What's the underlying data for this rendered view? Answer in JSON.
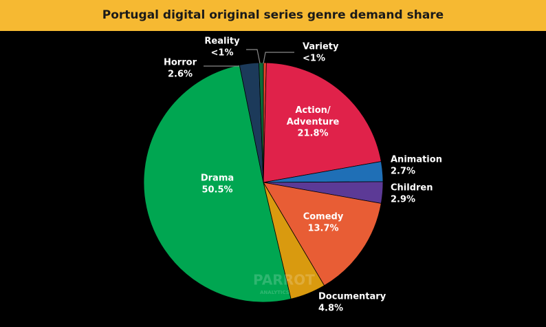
{
  "chart_data": {
    "type": "pie",
    "title": "Portugal digital original series genre demand share",
    "categories": [
      "Variety",
      "Action/Adventure",
      "Animation",
      "Children",
      "Comedy",
      "Documentary",
      "Drama",
      "Horror",
      "Reality"
    ],
    "values": [
      0.4,
      21.8,
      2.7,
      2.9,
      13.7,
      4.8,
      50.5,
      2.6,
      0.6
    ],
    "value_labels": [
      "<1%",
      "21.8%",
      "2.7%",
      "2.9%",
      "13.7%",
      "4.8%",
      "50.5%",
      "2.6%",
      "<1%"
    ],
    "colors": [
      "#e8452c",
      "#e0224a",
      "#1f6fb6",
      "#5c3a96",
      "#e85d35",
      "#d99a0f",
      "#00a651",
      "#1c3a5a",
      "#0b6b38"
    ],
    "watermark": "PARROT",
    "watermark_sub": "ANALYTICS"
  }
}
